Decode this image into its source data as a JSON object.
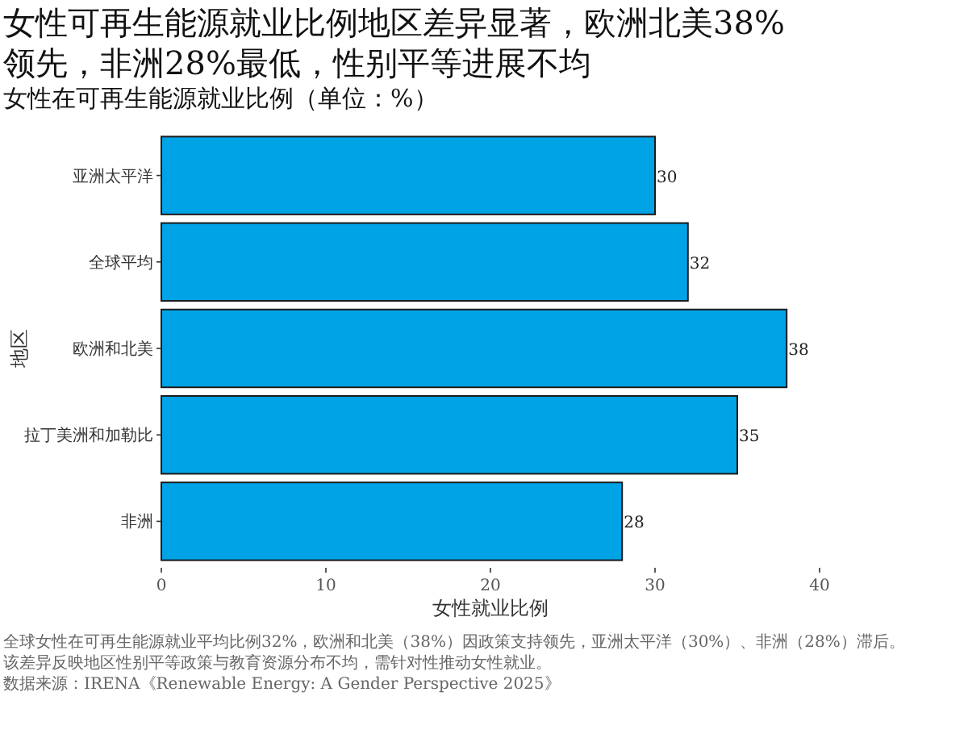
{
  "chart_data": {
    "type": "bar",
    "orientation": "horizontal",
    "title": "女性可再生能源就业比例地区差异显著，欧洲北美38%领先，非洲28%最低，性别平等进展不均",
    "subtitle": "女性在可再生能源就业比例（单位：%）",
    "xlabel": "女性就业比例",
    "ylabel": "地区",
    "categories": [
      "亚洲太平洋",
      "全球平均",
      "欧洲和北美",
      "拉丁美洲和加勒比",
      "非洲"
    ],
    "values": [
      30,
      32,
      38,
      35,
      28
    ],
    "color": "#00a3e6",
    "data_labels": true,
    "grid": false,
    "xlim": [
      0,
      40
    ],
    "xticks": [
      0,
      10,
      20,
      30,
      40
    ],
    "annotations": [
      "全球女性在可再生能源就业平均比例32%，欧洲和北美（38%）因政策支持领先，亚洲太平洋（30%）、非洲（28%）滞后。",
      "该差异反映地区性别平等政策与教育资源分布不均，需针对性推动女性就业。",
      "数据来源：IRENA《Renewable Energy: A Gender Perspective 2025》"
    ]
  }
}
